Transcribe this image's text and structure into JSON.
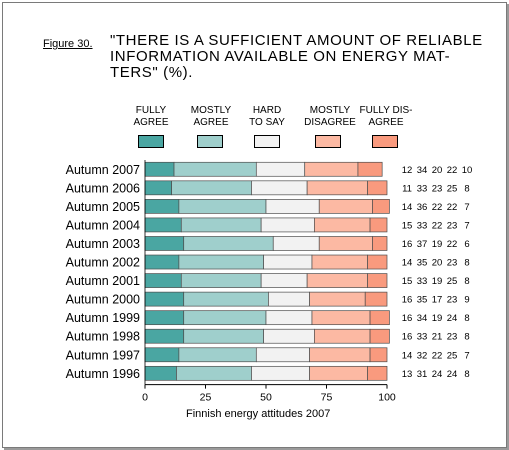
{
  "figure_label": "Figure 30.",
  "title_lines": [
    "\"THERE IS A SUFFICIENT AMOUNT OF RELIABLE",
    "INFORMATION AVAILABLE ON ENERGY MAT-",
    "TERS\" (%)."
  ],
  "caption": "Finnish energy attitudes 2007",
  "chart_data": {
    "type": "bar",
    "orientation": "horizontal",
    "stacked": true,
    "title": "\"THERE IS A SUFFICIENT AMOUNT OF RELIABLE INFORMATION AVAILABLE ON ENERGY MATTERS\" (%).",
    "xlabel": "",
    "ylabel": "",
    "xlim": [
      0,
      100
    ],
    "x_ticks": [
      "0",
      "25",
      "50",
      "75",
      "100"
    ],
    "grid": false,
    "legend_position": "top",
    "categories": [
      "Autumn 2007",
      "Autumn 2006",
      "Autumn 2005",
      "Autumn 2004",
      "Autumn 2003",
      "Autumn 2002",
      "Autumn 2001",
      "Autumn 2000",
      "Autumn 1999",
      "Autumn 1998",
      "Autumn 1997",
      "Autumn 1996"
    ],
    "series": [
      {
        "name": "FULLY AGREE",
        "legend_lines": [
          "FULLY",
          "AGREE"
        ],
        "color": "#4aa6a2",
        "values": [
          12,
          11,
          14,
          15,
          16,
          14,
          15,
          16,
          16,
          16,
          14,
          13
        ]
      },
      {
        "name": "MOSTLY AGREE",
        "legend_lines": [
          "MOSTLY",
          "AGREE"
        ],
        "color": "#9fcfcc",
        "values": [
          34,
          33,
          36,
          33,
          37,
          35,
          33,
          35,
          34,
          33,
          32,
          31
        ]
      },
      {
        "name": "HARD TO SAY",
        "legend_lines": [
          "HARD",
          "TO SAY"
        ],
        "color": "#f2f2f2",
        "values": [
          20,
          23,
          22,
          22,
          19,
          20,
          19,
          17,
          19,
          21,
          22,
          24
        ]
      },
      {
        "name": "MOSTLY DISAGREE",
        "legend_lines": [
          "MOSTLY",
          "DISAGREE"
        ],
        "color": "#fcb9a3",
        "values": [
          22,
          25,
          22,
          23,
          22,
          23,
          25,
          23,
          24,
          23,
          25,
          24
        ]
      },
      {
        "name": "FULLY DISAGREE",
        "legend_lines": [
          "FULLY DIS-",
          "AGREE"
        ],
        "color": "#f99a7e",
        "values": [
          10,
          8,
          7,
          7,
          6,
          8,
          8,
          9,
          8,
          8,
          7,
          8
        ]
      }
    ]
  }
}
